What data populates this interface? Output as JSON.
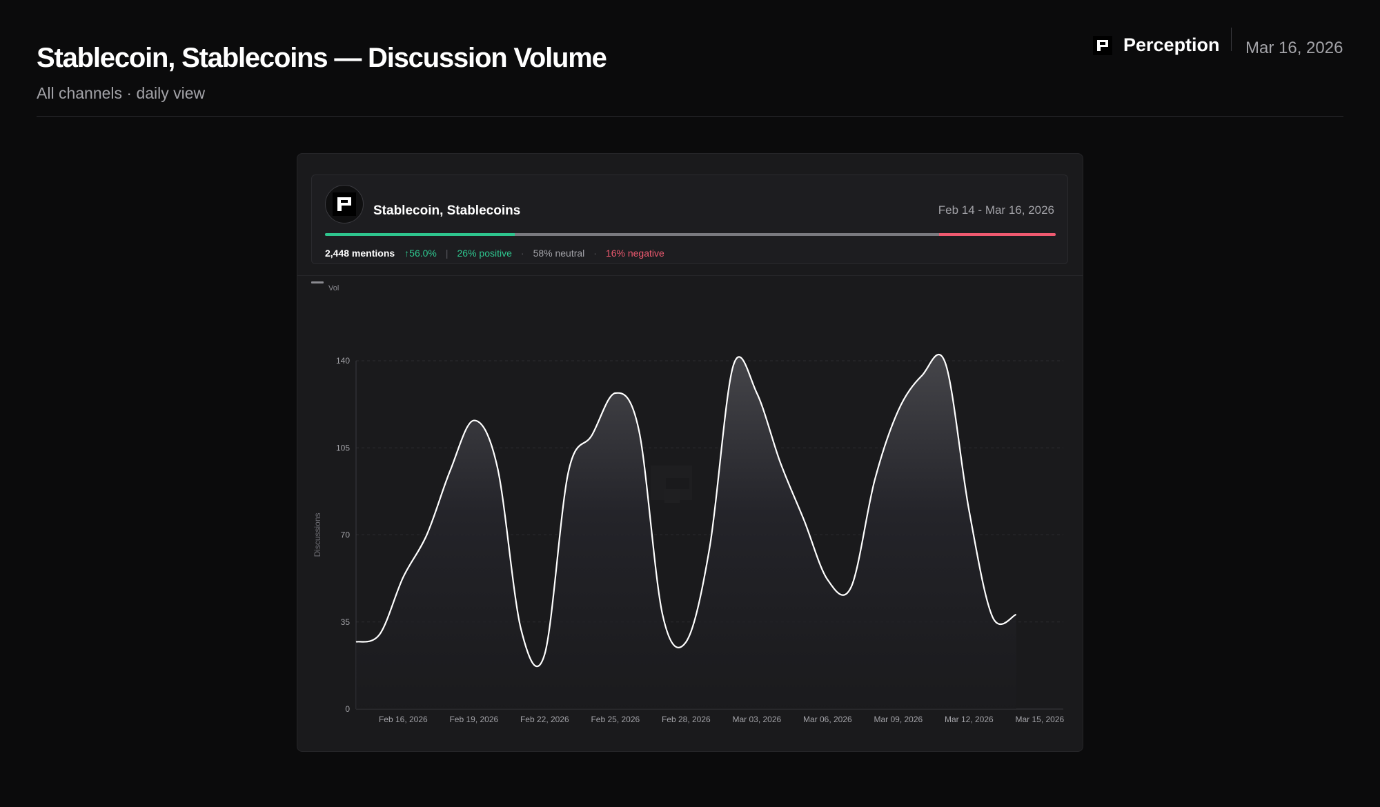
{
  "header": {
    "title": "Stablecoin, Stablecoins — Discussion Volume",
    "subtitle": "All channels · daily view",
    "brand_name": "Perception",
    "date": "Mar 16, 2026"
  },
  "topic": {
    "name": "Stablecoin, Stablecoins",
    "date_range": "Feb 14 - Mar 16, 2026",
    "mentions": "2,448 mentions",
    "growth": "↑56.0%",
    "positive_label": "26% positive",
    "neutral_label": "58% neutral",
    "negative_label": "16% negative",
    "sentiment": {
      "positive": 26,
      "neutral": 58,
      "negative": 16
    }
  },
  "colors": {
    "positive": "#2ec58e",
    "neutral": "#7a7a7f",
    "negative": "#ef5a70",
    "line": "#ffffff",
    "background": "#0b0b0c",
    "card": "#1a1a1c"
  },
  "chart_data": {
    "type": "area",
    "legend": [
      "Vol"
    ],
    "legend_position": "top-left",
    "ylabel": "Discussions",
    "xlabel": "",
    "ylim": [
      0,
      140
    ],
    "yticks": [
      0,
      35,
      70,
      105,
      140
    ],
    "xticks": [
      "Feb 16, 2026",
      "Feb 19, 2026",
      "Feb 22, 2026",
      "Feb 25, 2026",
      "Feb 28, 2026",
      "Mar 03, 2026",
      "Mar 06, 2026",
      "Mar 09, 2026",
      "Mar 12, 2026",
      "Mar 15, 2026"
    ],
    "grid": true,
    "series": [
      {
        "name": "Vol",
        "x": [
          "2026-02-14",
          "2026-02-15",
          "2026-02-16",
          "2026-02-17",
          "2026-02-18",
          "2026-02-19",
          "2026-02-20",
          "2026-02-21",
          "2026-02-22",
          "2026-02-23",
          "2026-02-24",
          "2026-02-25",
          "2026-02-26",
          "2026-02-27",
          "2026-02-28",
          "2026-03-01",
          "2026-03-02",
          "2026-03-03",
          "2026-03-04",
          "2026-03-05",
          "2026-03-06",
          "2026-03-07",
          "2026-03-08",
          "2026-03-09",
          "2026-03-10",
          "2026-03-11",
          "2026-03-12",
          "2026-03-13",
          "2026-03-14",
          "2026-03-15",
          "2026-03-16"
        ],
        "values": [
          27,
          30,
          53,
          70,
          96,
          116,
          97,
          32,
          22,
          95,
          110,
          127,
          112,
          38,
          27,
          65,
          138,
          127,
          99,
          76,
          52,
          49,
          92,
          120,
          134,
          139,
          80,
          37,
          38,
          null,
          null
        ]
      }
    ]
  }
}
